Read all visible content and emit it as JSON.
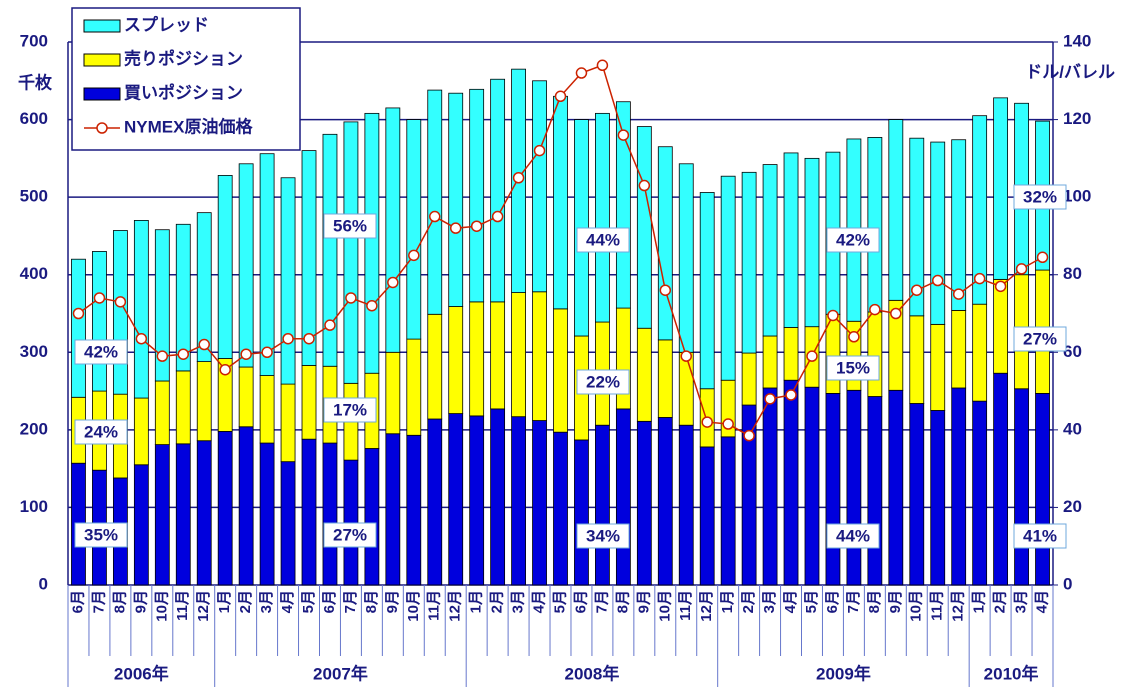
{
  "chart_data": {
    "type": "stacked-bar-line",
    "y_label": "千枚",
    "y2_label": "ドル/バレル",
    "categories": [
      "6月",
      "7月",
      "8月",
      "9月",
      "10月",
      "11月",
      "12月",
      "1月",
      "2月",
      "3月",
      "4月",
      "5月",
      "6月",
      "7月",
      "8月",
      "9月",
      "10月",
      "11月",
      "12月",
      "1月",
      "2月",
      "3月",
      "4月",
      "5月",
      "6月",
      "7月",
      "8月",
      "9月",
      "10月",
      "11月",
      "12月",
      "1月",
      "2月",
      "3月",
      "4月",
      "5月",
      "6月",
      "7月",
      "8月",
      "9月",
      "10月",
      "11月",
      "12月",
      "1月",
      "2月",
      "3月",
      "4月"
    ],
    "years": [
      "2006年",
      "2007年",
      "2008年",
      "2009年",
      "2010年"
    ],
    "series": [
      {
        "name": "買いポジション",
        "color": "#0000dd",
        "values": [
          157,
          148,
          138,
          155,
          181,
          182,
          186,
          198,
          204,
          183,
          159,
          188,
          183,
          161,
          176,
          195,
          193,
          214,
          221,
          218,
          227,
          217,
          212,
          197,
          187,
          206,
          227,
          211,
          216,
          206,
          178,
          191,
          232,
          254,
          264,
          255,
          247,
          251,
          243,
          251,
          234,
          225,
          254,
          237,
          273,
          253,
          247
        ]
      },
      {
        "name": "売りポジション",
        "color": "#ffff00",
        "values": [
          85,
          102,
          108,
          86,
          82,
          94,
          102,
          94,
          77,
          87,
          100,
          95,
          99,
          99,
          97,
          105,
          124,
          135,
          138,
          147,
          138,
          160,
          166,
          159,
          134,
          133,
          130,
          120,
          100,
          94,
          75,
          73,
          67,
          67,
          68,
          78,
          102,
          89,
          109,
          116,
          113,
          111,
          100,
          125,
          121,
          147,
          159
        ]
      },
      {
        "name": "スプレッド",
        "color": "#33ffff",
        "values": [
          178,
          180,
          211,
          229,
          195,
          189,
          192,
          236,
          262,
          286,
          266,
          277,
          299,
          337,
          335,
          315,
          283,
          289,
          275,
          274,
          287,
          288,
          272,
          274,
          279,
          269,
          266,
          260,
          249,
          243,
          253,
          263,
          233,
          221,
          225,
          217,
          209,
          235,
          225,
          233,
          229,
          235,
          220,
          243,
          234,
          221,
          192
        ]
      },
      {
        "name": "NYMEX原油価格",
        "color": "#cc2200",
        "axis": "y2",
        "values": [
          70,
          74,
          73,
          63.5,
          59,
          59.5,
          62,
          55.5,
          59.5,
          60,
          63.5,
          63.5,
          67,
          74,
          72,
          78,
          85,
          95,
          92,
          92.5,
          95,
          105,
          112,
          126,
          132,
          134,
          116,
          103,
          76,
          59,
          42,
          41.5,
          38.5,
          48,
          49,
          59,
          69.5,
          64,
          71,
          70,
          76,
          78.5,
          75,
          79,
          77,
          81.5,
          84.5
        ]
      }
    ],
    "annotations": [
      "35%",
      "24%",
      "42%",
      "27%",
      "17%",
      "56%",
      "34%",
      "22%",
      "44%",
      "44%",
      "15%",
      "42%",
      "41%",
      "27%",
      "32%"
    ],
    "ylim": [
      0,
      700
    ],
    "yticks": [
      0,
      100,
      200,
      300,
      400,
      500,
      600,
      700
    ],
    "y2lim": [
      0,
      140
    ],
    "y2ticks": [
      0,
      20,
      40,
      60,
      80,
      100,
      120,
      140
    ],
    "grid": true
  }
}
